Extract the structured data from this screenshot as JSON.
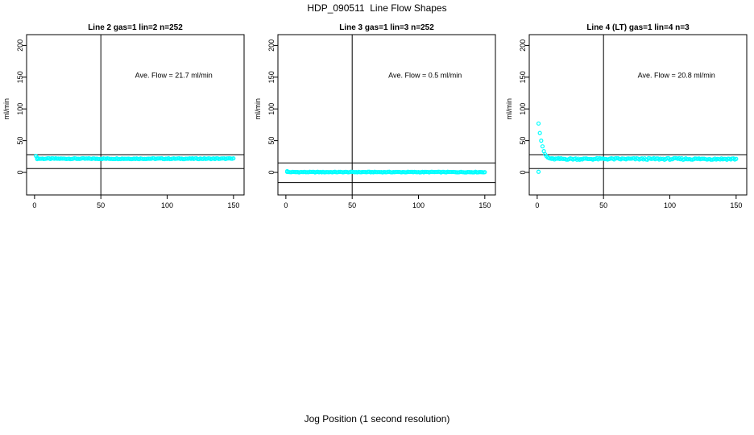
{
  "page": {
    "main_title": "HDP_090511  Line Flow Shapes",
    "x_axis_outer_label": "Jog Position (1 second resolution)",
    "background_color": "#FFFFFF",
    "axis_color": "#000000",
    "point_color": "#00FFFF"
  },
  "chart_data": [
    {
      "type": "scatter",
      "title": "Line 2 gas=1 lin=2 n=252",
      "gas": 1,
      "lin": 2,
      "n": 252,
      "annotation": "Ave. Flow =  21.7  ml/min",
      "ave_flow_ml_min": 21.7,
      "ylabel": "ml/min",
      "x_ticks": [
        0,
        50,
        100,
        150
      ],
      "y_ticks": [
        0,
        50,
        100,
        150,
        200
      ],
      "xlim": [
        -6,
        158
      ],
      "ylim": [
        -35.5,
        217
      ],
      "vline_x": 50,
      "hlines_y": [
        6,
        28
      ],
      "annotation_pos": [
        105,
        149
      ],
      "head_points": [
        [
          1,
          26
        ],
        [
          2,
          23.2
        ]
      ],
      "outlier_points": [],
      "band": {
        "x_from": 2,
        "x_to": 150,
        "step": 1,
        "y": 21.6,
        "jitter": 0.7
      },
      "grid": false,
      "legend": null
    },
    {
      "type": "scatter",
      "title": "Line 3 gas=1 lin=3 n=252",
      "gas": 1,
      "lin": 3,
      "n": 252,
      "annotation": "Ave. Flow =  0.5  ml/min",
      "ave_flow_ml_min": 0.5,
      "ylabel": "ml/min",
      "x_ticks": [
        0,
        50,
        100,
        150
      ],
      "y_ticks": [
        0,
        50,
        100,
        150,
        200
      ],
      "xlim": [
        -6,
        158
      ],
      "ylim": [
        -35.5,
        217
      ],
      "vline_x": 50,
      "hlines_y": [
        -16,
        15
      ],
      "annotation_pos": [
        105,
        149
      ],
      "head_points": [
        [
          1,
          2
        ]
      ],
      "outlier_points": [],
      "band": {
        "x_from": 1,
        "x_to": 150,
        "step": 1,
        "y": 0.5,
        "jitter": 0.5
      },
      "grid": false,
      "legend": null
    },
    {
      "type": "scatter",
      "title": "Line 4 (LT) gas=1 lin=4 n=3",
      "gas": 1,
      "lin": 4,
      "n": 3,
      "annotation": "Ave. Flow =  20.8  ml/min",
      "ave_flow_ml_min": 20.8,
      "ylabel": "ml/min",
      "x_ticks": [
        0,
        50,
        100,
        150
      ],
      "y_ticks": [
        0,
        50,
        100,
        150,
        200
      ],
      "xlim": [
        -6,
        158
      ],
      "ylim": [
        -35.5,
        217
      ],
      "vline_x": 50,
      "hlines_y": [
        6,
        28
      ],
      "annotation_pos": [
        105,
        149
      ],
      "head_points": [
        [
          1,
          77
        ],
        [
          2,
          62
        ],
        [
          3,
          50
        ],
        [
          4,
          41
        ],
        [
          5,
          33.5
        ],
        [
          6,
          28.5
        ],
        [
          7,
          25.5
        ],
        [
          8,
          23.5
        ],
        [
          9,
          22.5
        ],
        [
          10,
          21.8
        ],
        [
          11,
          21.4
        ]
      ],
      "outlier_points": [
        [
          1,
          1
        ]
      ],
      "band": {
        "x_from": 11,
        "x_to": 150,
        "step": 1,
        "y": 21.2,
        "jitter": 1.3
      },
      "grid": false,
      "legend": null
    }
  ]
}
